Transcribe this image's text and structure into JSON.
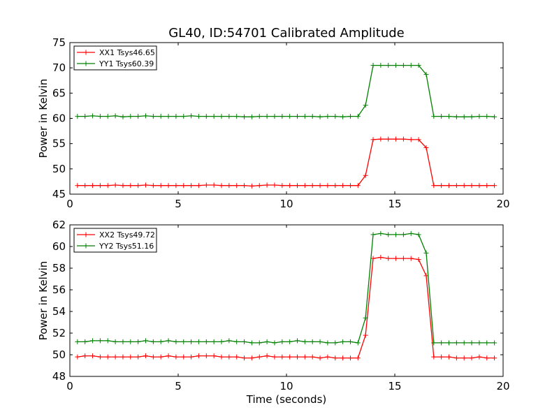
{
  "chart_data": [
    {
      "type": "line",
      "title": "GL40, ID:54701 Calibrated Amplitude",
      "xlabel": "",
      "ylabel": "Power in Kelvin",
      "xlim": [
        0,
        20
      ],
      "ylim": [
        45,
        75
      ],
      "xticks": [
        "0",
        "5",
        "10",
        "15",
        "20"
      ],
      "yticks": [
        "45",
        "50",
        "55",
        "60",
        "65",
        "70",
        "75"
      ],
      "legend_position": "top-left",
      "grid": false,
      "x": [
        0.35,
        0.7,
        1.05,
        1.4,
        1.75,
        2.1,
        2.45,
        2.8,
        3.15,
        3.5,
        3.85,
        4.2,
        4.55,
        4.9,
        5.25,
        5.6,
        5.95,
        6.3,
        6.65,
        7.0,
        7.35,
        7.7,
        8.05,
        8.4,
        8.75,
        9.1,
        9.45,
        9.8,
        10.15,
        10.5,
        10.85,
        11.2,
        11.55,
        11.9,
        12.25,
        12.6,
        12.95,
        13.3,
        13.65,
        14.0,
        14.35,
        14.7,
        15.05,
        15.4,
        15.75,
        16.1,
        16.45,
        16.8,
        17.15,
        17.5,
        17.85,
        18.2,
        18.55,
        18.9,
        19.25,
        19.6
      ],
      "series": [
        {
          "name": "XX1 Tsys46.65",
          "color": "#ff0000",
          "values": [
            46.7,
            46.7,
            46.7,
            46.7,
            46.7,
            46.8,
            46.7,
            46.7,
            46.7,
            46.8,
            46.7,
            46.7,
            46.7,
            46.7,
            46.7,
            46.7,
            46.7,
            46.8,
            46.8,
            46.7,
            46.7,
            46.7,
            46.7,
            46.6,
            46.7,
            46.8,
            46.8,
            46.7,
            46.7,
            46.7,
            46.7,
            46.7,
            46.7,
            46.7,
            46.7,
            46.7,
            46.7,
            46.7,
            48.7,
            55.8,
            55.9,
            55.9,
            55.9,
            55.9,
            55.8,
            55.8,
            54.2,
            46.7,
            46.7,
            46.7,
            46.7,
            46.7,
            46.7,
            46.7,
            46.7,
            46.7
          ]
        },
        {
          "name": "YY1 Tsys60.39",
          "color": "#008000",
          "values": [
            60.4,
            60.4,
            60.5,
            60.4,
            60.4,
            60.5,
            60.3,
            60.4,
            60.4,
            60.5,
            60.4,
            60.4,
            60.4,
            60.4,
            60.4,
            60.5,
            60.4,
            60.4,
            60.4,
            60.4,
            60.4,
            60.4,
            60.3,
            60.3,
            60.4,
            60.4,
            60.4,
            60.4,
            60.4,
            60.4,
            60.4,
            60.4,
            60.3,
            60.4,
            60.4,
            60.3,
            60.4,
            60.4,
            62.6,
            70.5,
            70.5,
            70.5,
            70.5,
            70.5,
            70.5,
            70.5,
            68.7,
            60.4,
            60.4,
            60.4,
            60.3,
            60.3,
            60.3,
            60.4,
            60.4,
            60.3
          ]
        }
      ]
    },
    {
      "type": "line",
      "title": "",
      "xlabel": "Time (seconds)",
      "ylabel": "Power in Kelvin",
      "xlim": [
        0,
        20
      ],
      "ylim": [
        48,
        62
      ],
      "xticks": [
        "0",
        "5",
        "10",
        "15",
        "20"
      ],
      "yticks": [
        "48",
        "50",
        "52",
        "54",
        "56",
        "58",
        "60",
        "62"
      ],
      "legend_position": "top-left",
      "grid": false,
      "x": [
        0.35,
        0.7,
        1.05,
        1.4,
        1.75,
        2.1,
        2.45,
        2.8,
        3.15,
        3.5,
        3.85,
        4.2,
        4.55,
        4.9,
        5.25,
        5.6,
        5.95,
        6.3,
        6.65,
        7.0,
        7.35,
        7.7,
        8.05,
        8.4,
        8.75,
        9.1,
        9.45,
        9.8,
        10.15,
        10.5,
        10.85,
        11.2,
        11.55,
        11.9,
        12.25,
        12.6,
        12.95,
        13.3,
        13.65,
        14.0,
        14.35,
        14.7,
        15.05,
        15.4,
        15.75,
        16.1,
        16.45,
        16.8,
        17.15,
        17.5,
        17.85,
        18.2,
        18.55,
        18.9,
        19.25,
        19.6
      ],
      "series": [
        {
          "name": "XX2 Tsys49.72",
          "color": "#ff0000",
          "values": [
            49.8,
            49.9,
            49.9,
            49.8,
            49.8,
            49.8,
            49.8,
            49.8,
            49.8,
            49.9,
            49.8,
            49.8,
            49.9,
            49.8,
            49.8,
            49.8,
            49.9,
            49.9,
            49.9,
            49.8,
            49.8,
            49.8,
            49.7,
            49.7,
            49.8,
            49.9,
            49.8,
            49.8,
            49.8,
            49.8,
            49.8,
            49.8,
            49.7,
            49.8,
            49.7,
            49.7,
            49.7,
            49.7,
            51.8,
            58.9,
            59.0,
            58.9,
            58.9,
            58.9,
            58.9,
            58.8,
            57.3,
            49.8,
            49.8,
            49.8,
            49.7,
            49.7,
            49.7,
            49.8,
            49.7,
            49.7
          ]
        },
        {
          "name": "YY2 Tsys51.16",
          "color": "#008000",
          "values": [
            51.2,
            51.2,
            51.3,
            51.3,
            51.3,
            51.2,
            51.2,
            51.2,
            51.2,
            51.3,
            51.2,
            51.2,
            51.3,
            51.2,
            51.2,
            51.2,
            51.2,
            51.2,
            51.2,
            51.2,
            51.3,
            51.2,
            51.2,
            51.1,
            51.1,
            51.2,
            51.1,
            51.2,
            51.2,
            51.3,
            51.2,
            51.2,
            51.2,
            51.1,
            51.1,
            51.2,
            51.2,
            51.1,
            53.4,
            61.1,
            61.2,
            61.1,
            61.1,
            61.1,
            61.2,
            61.1,
            59.4,
            51.1,
            51.1,
            51.1,
            51.1,
            51.1,
            51.1,
            51.1,
            51.1,
            51.1
          ]
        }
      ]
    }
  ]
}
